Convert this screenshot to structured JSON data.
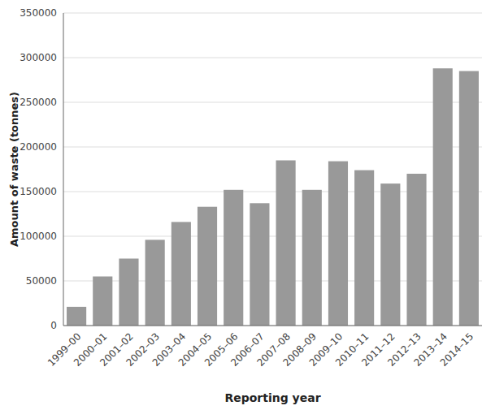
{
  "chart_data": {
    "type": "bar",
    "categories": [
      "1999–00",
      "2000–01",
      "2001–02",
      "2002–03",
      "2003–04",
      "2004–05",
      "2005–06",
      "2006–07",
      "2007–08",
      "2008–09",
      "2009–10",
      "2010–11",
      "2011–12",
      "2012–13",
      "2013–14",
      "2014–15"
    ],
    "values": [
      21000,
      55000,
      75000,
      96000,
      116000,
      133000,
      152000,
      137000,
      185000,
      152000,
      184000,
      174000,
      159000,
      170000,
      288000,
      285000
    ],
    "color": "#999999",
    "xlabel": "Reporting year",
    "ylabel": "Amount of waste (tonnes)",
    "ylim": [
      0,
      350000
    ],
    "yticks": [
      0,
      50000,
      100000,
      150000,
      200000,
      250000,
      300000,
      350000
    ],
    "grid": true
  }
}
